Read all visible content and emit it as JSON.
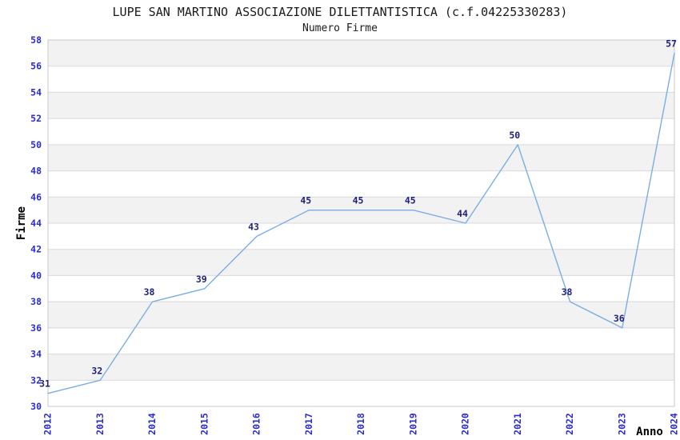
{
  "chart_data": {
    "type": "line",
    "title": "LUPE SAN MARTINO ASSOCIAZIONE DILETTANTISTICA (c.f.04225330283)",
    "subtitle": "Numero Firme",
    "xlabel": "Anno",
    "ylabel": "Firme",
    "categories": [
      "2012",
      "2013",
      "2014",
      "2015",
      "2016",
      "2017",
      "2018",
      "2019",
      "2020",
      "2021",
      "2022",
      "2023",
      "2024"
    ],
    "values": [
      31,
      32,
      38,
      39,
      43,
      45,
      45,
      45,
      44,
      50,
      38,
      36,
      57
    ],
    "ylim": [
      30,
      58
    ],
    "ytick_step": 2,
    "grid": "horizontal-bands-alternating",
    "legend": "none",
    "markers": "none",
    "x_tick_rotation": -90,
    "colors": {
      "line": "#7aaee3",
      "band": "#f2f2f2",
      "grid": "#d9d9d9",
      "border": "#c8c8c8",
      "tick_label": "#2b2bd0",
      "data_label": "#1f1f78",
      "title": "#1a1a1a",
      "axis_title": "#000000",
      "background": "#ffffff"
    }
  }
}
